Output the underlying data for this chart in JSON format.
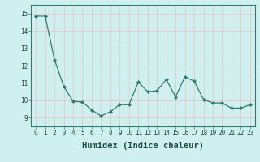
{
  "x": [
    0,
    1,
    2,
    3,
    4,
    5,
    6,
    7,
    8,
    9,
    10,
    11,
    12,
    13,
    14,
    15,
    16,
    17,
    18,
    19,
    20,
    21,
    22,
    23
  ],
  "y": [
    14.85,
    14.85,
    12.35,
    10.8,
    9.95,
    9.9,
    9.45,
    9.1,
    9.35,
    9.75,
    9.75,
    11.05,
    10.5,
    10.55,
    11.2,
    10.2,
    11.35,
    11.1,
    10.05,
    9.85,
    9.85,
    9.55,
    9.55,
    9.75
  ],
  "line_color": "#2e7d72",
  "marker": "D",
  "marker_size": 2,
  "bg_color": "#cff0ee",
  "grid_color": "#e8c8c8",
  "xlabel": "Humidex (Indice chaleur)",
  "ylim": [
    8.5,
    15.5
  ],
  "xlim": [
    -0.5,
    23.5
  ],
  "yticks": [
    9,
    10,
    11,
    12,
    13,
    14,
    15
  ],
  "xticks": [
    0,
    1,
    2,
    3,
    4,
    5,
    6,
    7,
    8,
    9,
    10,
    11,
    12,
    13,
    14,
    15,
    16,
    17,
    18,
    19,
    20,
    21,
    22,
    23
  ],
  "tick_fontsize": 5.5,
  "xlabel_fontsize": 7.5,
  "label_color": "#1a4a44",
  "spine_color": "#2e7d72",
  "linewidth": 0.9
}
